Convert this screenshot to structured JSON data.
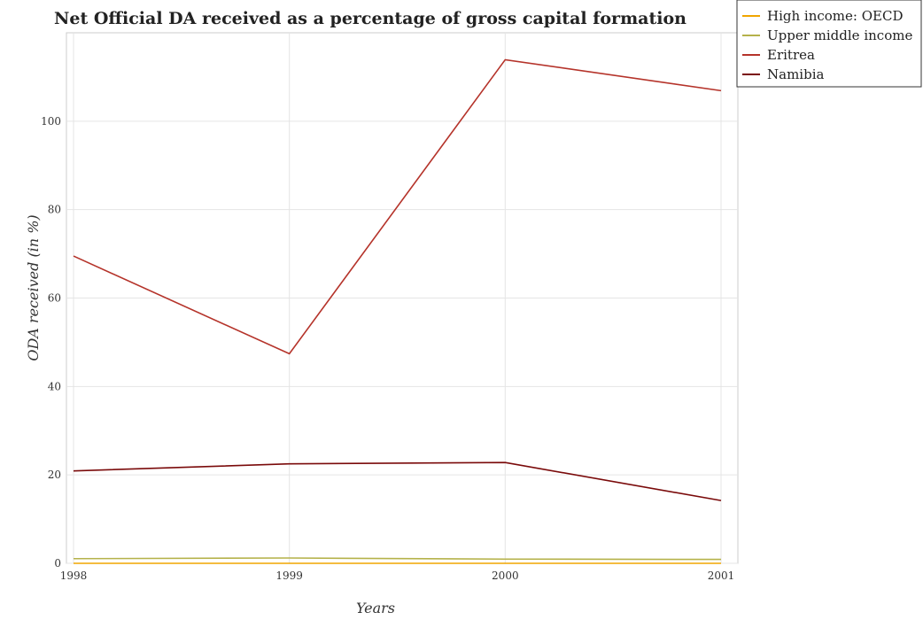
{
  "chart_data": {
    "type": "line",
    "title": "Net Official DA received as a percentage of gross capital formation",
    "xlabel": "Years",
    "ylabel": "ODA received (in %)",
    "categories": [
      "1998",
      "1999",
      "2000",
      "2001"
    ],
    "ylim": [
      0,
      120
    ],
    "yticks": [
      0,
      20,
      40,
      60,
      80,
      100
    ],
    "grid": true,
    "legend_position": "top-right",
    "series": [
      {
        "name": "High income: OECD",
        "color": "#f0a500",
        "values": [
          0.0,
          0.0,
          0.0,
          0.0
        ]
      },
      {
        "name": "Upper middle income",
        "color": "#b5b24a",
        "values": [
          1.05,
          1.2,
          0.95,
          0.88
        ]
      },
      {
        "name": "Eritrea",
        "color": "#b5332a",
        "values": [
          69.5,
          47.4,
          113.9,
          106.9
        ]
      },
      {
        "name": "Namibia",
        "color": "#7a0a0a",
        "values": [
          20.9,
          22.5,
          22.8,
          14.2
        ]
      }
    ]
  }
}
